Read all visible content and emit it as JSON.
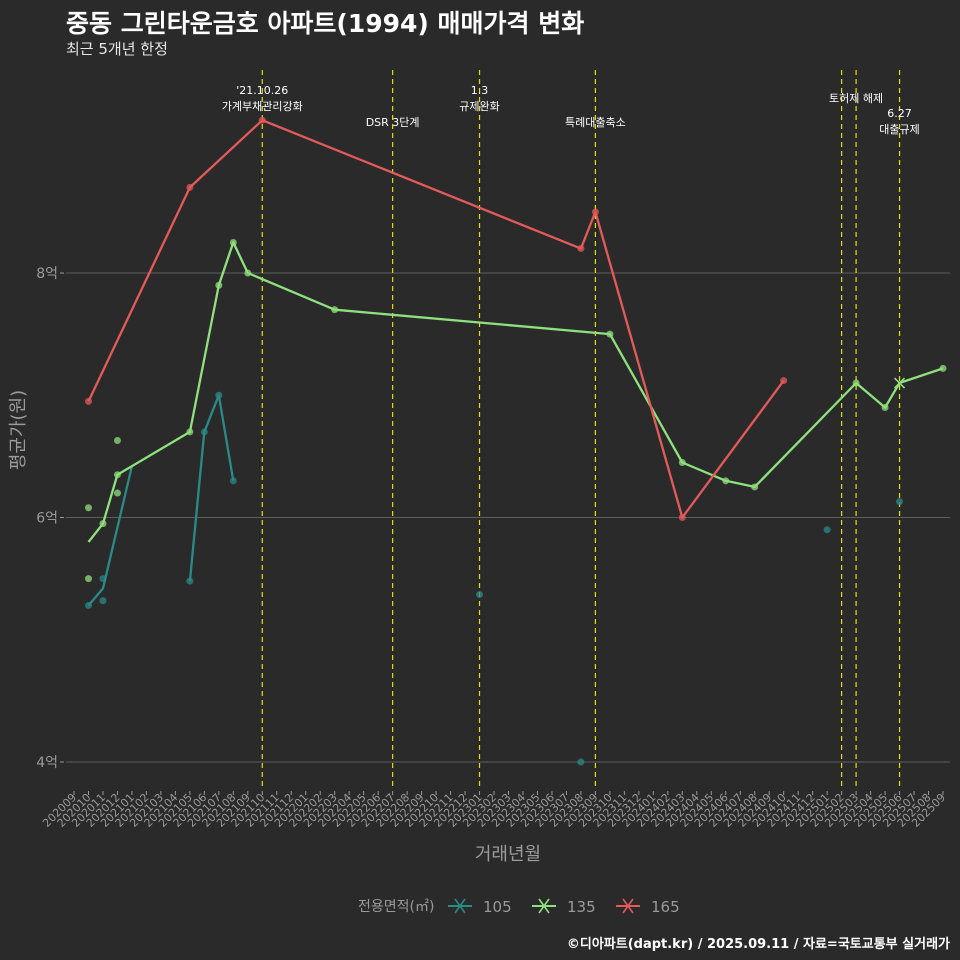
{
  "title": "중동 그린타운금호 아파트(1994) 매매가격 변화",
  "subtitle": "최근 5개년 한정",
  "caption": "©디아파트(dapt.kr) / 2025.09.11 / 자료=국토교통부 실거래가",
  "colors": {
    "background": "#2b2a2b",
    "grid": "#5e5e5e",
    "vline": "#e0e000",
    "s105": "#2a8a88",
    "s135": "#8fe07e",
    "s165": "#e35a5a",
    "text": "#ffffff",
    "muted": "#9a9a9a"
  },
  "chart_data": {
    "type": "line",
    "title": "중동 그린타운금호 아파트(1994) 매매가격 변화",
    "xlabel": "거래년월",
    "ylabel": "평균가(원)",
    "ylim": [
      3.8,
      9.6
    ],
    "y_ticks": [
      {
        "value": 4,
        "label": "4억"
      },
      {
        "value": 6,
        "label": "6억"
      },
      {
        "value": 8,
        "label": "8억"
      }
    ],
    "x_ticks": [
      "202009",
      "202010",
      "202011",
      "202012",
      "202101",
      "202102",
      "202103",
      "202104",
      "202105",
      "202106",
      "202107",
      "202108",
      "202109",
      "202110",
      "202111",
      "202112",
      "202201",
      "202202",
      "202203",
      "202204",
      "202205",
      "202206",
      "202207",
      "202208",
      "202209",
      "202210",
      "202211",
      "202212",
      "202301",
      "202302",
      "202303",
      "202304",
      "202305",
      "202306",
      "202307",
      "202308",
      "202309",
      "202310",
      "202311",
      "202312",
      "202401",
      "202402",
      "202403",
      "202404",
      "202405",
      "202406",
      "202407",
      "202408",
      "202409",
      "202410",
      "202411",
      "202412",
      "202501",
      "202502",
      "202503",
      "202504",
      "202505",
      "202506",
      "202507",
      "202508",
      "202509"
    ],
    "legend_title": "전용면적(㎡)",
    "legend_position": "bottom",
    "series": [
      {
        "name": "105",
        "color_key": "s105",
        "line": [
          [
            "202010",
            5.28
          ],
          [
            "202011",
            5.42
          ],
          [
            "202101",
            6.42
          ]
        ],
        "line2": [
          [
            "202105",
            5.48
          ],
          [
            "202106",
            6.7
          ],
          [
            "202107",
            7.0
          ],
          [
            "202108",
            6.3
          ]
        ],
        "points": [
          [
            "202010",
            5.28
          ],
          [
            "202011",
            5.5
          ],
          [
            "202011",
            5.32
          ],
          [
            "202105",
            5.48
          ],
          [
            "202106",
            6.7
          ],
          [
            "202107",
            7.0
          ],
          [
            "202108",
            6.3
          ],
          [
            "202301",
            5.37
          ],
          [
            "202308",
            4.0
          ],
          [
            "202501",
            5.9
          ],
          [
            "202506",
            6.13
          ]
        ]
      },
      {
        "name": "135",
        "color_key": "s135",
        "line": [
          [
            "202010",
            5.8
          ],
          [
            "202011",
            5.95
          ],
          [
            "202012",
            6.35
          ],
          [
            "202105",
            6.7
          ],
          [
            "202107",
            7.9
          ],
          [
            "202108",
            8.25
          ],
          [
            "202109",
            8.0
          ],
          [
            "202203",
            7.7
          ],
          [
            "202310",
            7.5
          ],
          [
            "202403",
            6.45
          ],
          [
            "202406",
            6.3
          ],
          [
            "202408",
            6.25
          ],
          [
            "202503",
            7.1
          ],
          [
            "202505",
            6.9
          ],
          [
            "202506",
            7.1
          ],
          [
            "202509",
            7.22
          ]
        ],
        "points": [
          [
            "202010",
            6.08
          ],
          [
            "202010",
            5.5
          ],
          [
            "202011",
            5.95
          ],
          [
            "202012",
            6.2
          ],
          [
            "202012",
            6.63
          ],
          [
            "202012",
            6.35
          ],
          [
            "202105",
            6.7
          ],
          [
            "202107",
            7.9
          ],
          [
            "202108",
            8.25
          ],
          [
            "202109",
            8.0
          ],
          [
            "202203",
            7.7
          ],
          [
            "202310",
            7.5
          ],
          [
            "202403",
            6.45
          ],
          [
            "202406",
            6.3
          ],
          [
            "202408",
            6.25
          ],
          [
            "202503",
            7.1
          ],
          [
            "202505",
            6.9
          ],
          [
            "202509",
            7.22
          ]
        ]
      },
      {
        "name": "165",
        "color_key": "s165",
        "line": [
          [
            "202010",
            6.95
          ],
          [
            "202105",
            8.7
          ],
          [
            "202110",
            9.25
          ],
          [
            "202308",
            8.2
          ],
          [
            "202309",
            8.5
          ],
          [
            "202403",
            6.0
          ],
          [
            "202410",
            7.12
          ]
        ],
        "points": [
          [
            "202010",
            6.95
          ],
          [
            "202105",
            8.7
          ],
          [
            "202110",
            9.25
          ],
          [
            "202308",
            8.2
          ],
          [
            "202309",
            8.5
          ],
          [
            "202403",
            6.0
          ],
          [
            "202410",
            7.12
          ]
        ]
      }
    ],
    "cross_marker": {
      "series": "135",
      "x": "202506",
      "y": 7.1
    },
    "annotations": [
      {
        "x": "202110",
        "lines": [
          "'21.10.26",
          "가계부채관리강화"
        ],
        "row": 0
      },
      {
        "x": "202207",
        "lines": [
          "DSR 3단계"
        ],
        "row": 1
      },
      {
        "x": "202301",
        "lines": [
          "1.3",
          "규제완화"
        ],
        "row": 0
      },
      {
        "x": "202309",
        "lines": [
          "특례대출축소"
        ],
        "row": 1
      },
      {
        "x": "202502",
        "lines": [],
        "row": 0
      },
      {
        "x": "202503",
        "lines": [
          "토허제 해제"
        ],
        "row": 0
      },
      {
        "x": "202506",
        "lines": [
          "6.27",
          "대출규제"
        ],
        "row": 1
      }
    ]
  }
}
